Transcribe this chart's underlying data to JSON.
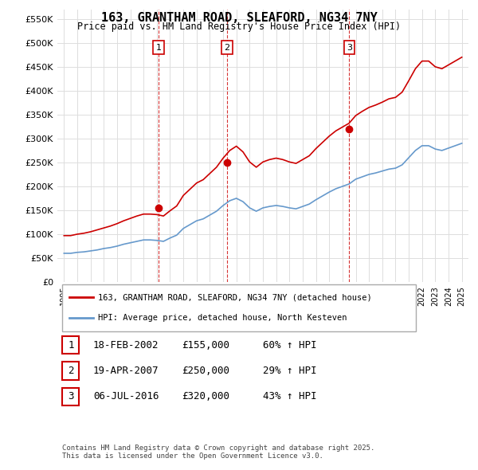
{
  "title": "163, GRANTHAM ROAD, SLEAFORD, NG34 7NY",
  "subtitle": "Price paid vs. HM Land Registry's House Price Index (HPI)",
  "legend_line1": "163, GRANTHAM ROAD, SLEAFORD, NG34 7NY (detached house)",
  "legend_line2": "HPI: Average price, detached house, North Kesteven",
  "footer1": "Contains HM Land Registry data © Crown copyright and database right 2025.",
  "footer2": "This data is licensed under the Open Government Licence v3.0.",
  "sale_color": "#cc0000",
  "hpi_color": "#6699cc",
  "vline_color": "#cc0000",
  "ylim": [
    0,
    570000
  ],
  "yticks": [
    0,
    50000,
    100000,
    150000,
    200000,
    250000,
    300000,
    350000,
    400000,
    450000,
    500000,
    550000
  ],
  "ytick_labels": [
    "£0",
    "£50K",
    "£100K",
    "£150K",
    "£200K",
    "£250K",
    "£300K",
    "£350K",
    "£400K",
    "£450K",
    "£500K",
    "£550K"
  ],
  "transactions": [
    {
      "date": 2002.12,
      "price": 155000,
      "label": "1"
    },
    {
      "date": 2007.3,
      "price": 250000,
      "label": "2"
    },
    {
      "date": 2016.51,
      "price": 320000,
      "label": "3"
    }
  ],
  "transaction_info": [
    {
      "label": "1",
      "date_str": "18-FEB-2002",
      "price_str": "£155,000",
      "pct_str": "60% ↑ HPI"
    },
    {
      "label": "2",
      "date_str": "19-APR-2007",
      "price_str": "£250,000",
      "pct_str": "29% ↑ HPI"
    },
    {
      "label": "3",
      "date_str": "06-JUL-2016",
      "price_str": "£320,000",
      "pct_str": "43% ↑ HPI"
    }
  ],
  "hpi_data": {
    "years": [
      1995,
      1995.5,
      1996,
      1996.5,
      1997,
      1997.5,
      1998,
      1998.5,
      1999,
      1999.5,
      2000,
      2000.5,
      2001,
      2001.5,
      2002,
      2002.5,
      2003,
      2003.5,
      2004,
      2004.5,
      2005,
      2005.5,
      2006,
      2006.5,
      2007,
      2007.5,
      2008,
      2008.5,
      2009,
      2009.5,
      2010,
      2010.5,
      2011,
      2011.5,
      2012,
      2012.5,
      2013,
      2013.5,
      2014,
      2014.5,
      2015,
      2015.5,
      2016,
      2016.5,
      2017,
      2017.5,
      2018,
      2018.5,
      2019,
      2019.5,
      2020,
      2020.5,
      2021,
      2021.5,
      2022,
      2022.5,
      2023,
      2023.5,
      2024,
      2024.5,
      2025
    ],
    "values": [
      60000,
      60000,
      62000,
      63000,
      65000,
      67000,
      70000,
      72000,
      75000,
      79000,
      82000,
      85000,
      88000,
      88000,
      87000,
      85000,
      92000,
      98000,
      112000,
      120000,
      128000,
      132000,
      140000,
      148000,
      160000,
      170000,
      175000,
      168000,
      155000,
      148000,
      155000,
      158000,
      160000,
      158000,
      155000,
      153000,
      158000,
      163000,
      172000,
      180000,
      188000,
      195000,
      200000,
      205000,
      215000,
      220000,
      225000,
      228000,
      232000,
      236000,
      238000,
      245000,
      260000,
      275000,
      285000,
      285000,
      278000,
      275000,
      280000,
      285000,
      290000
    ]
  },
  "sale_hpi_data": {
    "years": [
      1995,
      1995.5,
      1996,
      1996.5,
      1997,
      1997.5,
      1998,
      1998.5,
      1999,
      1999.5,
      2000,
      2000.5,
      2001,
      2001.5,
      2002,
      2002.5,
      2003,
      2003.5,
      2004,
      2004.5,
      2005,
      2005.5,
      2006,
      2006.5,
      2007,
      2007.5,
      2008,
      2008.5,
      2009,
      2009.5,
      2010,
      2010.5,
      2011,
      2011.5,
      2012,
      2012.5,
      2013,
      2013.5,
      2014,
      2014.5,
      2015,
      2015.5,
      2016,
      2016.5,
      2017,
      2017.5,
      2018,
      2018.5,
      2019,
      2019.5,
      2020,
      2020.5,
      2021,
      2021.5,
      2022,
      2022.5,
      2023,
      2023.5,
      2024,
      2024.5,
      2025
    ],
    "values": [
      97000,
      97000,
      100000,
      102000,
      105000,
      109000,
      113000,
      117000,
      122000,
      128000,
      133000,
      138000,
      142000,
      142000,
      141000,
      138000,
      149000,
      159000,
      181000,
      194000,
      207000,
      214000,
      227000,
      240000,
      259000,
      275000,
      284000,
      272000,
      251000,
      240000,
      251000,
      256000,
      259000,
      256000,
      251000,
      248000,
      256000,
      264000,
      279000,
      292000,
      305000,
      316000,
      324000,
      332000,
      348000,
      357000,
      365000,
      370000,
      376000,
      383000,
      386000,
      397000,
      421000,
      446000,
      462000,
      462000,
      450000,
      446000,
      454000,
      462000,
      470000
    ]
  }
}
